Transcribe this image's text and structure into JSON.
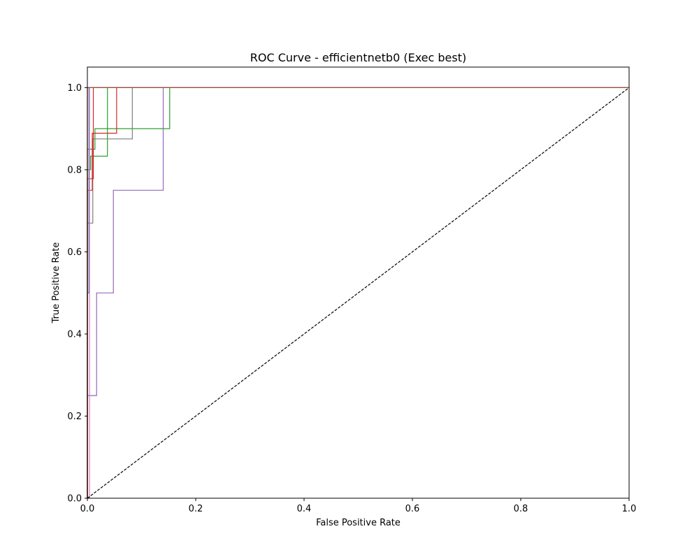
{
  "chart_data": {
    "type": "line",
    "title": "ROC Curve - efficientnetb0 (Exec best)",
    "xlabel": "False Positive Rate",
    "ylabel": "True Positive Rate",
    "xlim": [
      0.0,
      1.0
    ],
    "ylim": [
      0.0,
      1.05
    ],
    "x_ticks": [
      "0.0",
      "0.2",
      "0.4",
      "0.6",
      "0.8",
      "1.0"
    ],
    "y_ticks": [
      "0.0",
      "0.2",
      "0.4",
      "0.6",
      "0.8",
      "1.0"
    ],
    "x_tick_values": [
      0.0,
      0.2,
      0.4,
      0.6,
      0.8,
      1.0
    ],
    "y_tick_values": [
      0.0,
      0.2,
      0.4,
      0.6,
      0.8,
      1.0
    ],
    "grid": false,
    "legend": false,
    "diagonal": {
      "x": [
        0,
        1
      ],
      "y": [
        0,
        1
      ],
      "color": "#000000",
      "style": "dashed"
    },
    "series": [
      {
        "color": "#9467bd",
        "x": [
          0.0,
          0.0,
          0.017,
          0.017,
          0.048,
          0.048,
          0.14,
          0.14,
          1.0
        ],
        "y": [
          0.0,
          0.25,
          0.25,
          0.5,
          0.5,
          0.75,
          0.75,
          1.0,
          1.0
        ]
      },
      {
        "color": "#2ca02c",
        "x": [
          0.0,
          0.0,
          0.014,
          0.014,
          0.152,
          0.152,
          1.0
        ],
        "y": [
          0.0,
          0.85,
          0.85,
          0.9,
          0.9,
          1.0,
          1.0
        ]
      },
      {
        "color": "#2ca02c",
        "x": [
          0.0,
          0.0,
          0.006,
          0.006,
          0.037,
          0.037,
          1.0
        ],
        "y": [
          0.0,
          0.8,
          0.8,
          0.833,
          0.833,
          1.0,
          1.0
        ]
      },
      {
        "color": "#7f7f7f",
        "x": [
          0.0,
          0.0,
          0.01,
          0.01,
          0.083,
          0.083,
          1.0
        ],
        "y": [
          0.0,
          0.67,
          0.67,
          0.875,
          0.875,
          1.0,
          1.0
        ]
      },
      {
        "color": "#d62728",
        "x": [
          0.0,
          0.0,
          0.009,
          0.009,
          0.054,
          0.054,
          1.0
        ],
        "y": [
          0.0,
          0.75,
          0.75,
          0.889,
          0.889,
          1.0,
          1.0
        ]
      },
      {
        "color": "#d62728",
        "x": [
          0.0,
          0.0,
          0.011,
          0.011,
          1.0
        ],
        "y": [
          0.0,
          0.778,
          0.778,
          1.0,
          1.0
        ]
      },
      {
        "color": "#1f77b4",
        "x": [
          0.0,
          0.0,
          0.003,
          0.003,
          1.0
        ],
        "y": [
          0.0,
          0.5,
          0.5,
          1.0,
          1.0
        ]
      },
      {
        "color": "#e377c2",
        "x": [
          0.0,
          0.0,
          0.004,
          0.004,
          1.0
        ],
        "y": [
          0.0,
          0.0,
          0.0,
          1.0,
          1.0
        ]
      },
      {
        "color": "#ff7f0e",
        "x": [
          0.0,
          0.0,
          1.0
        ],
        "y": [
          0.0,
          1.0,
          1.0
        ]
      },
      {
        "color": "#8c564b",
        "x": [
          0.0,
          0.0,
          1.0
        ],
        "y": [
          0.0,
          1.0,
          1.0
        ]
      }
    ]
  }
}
